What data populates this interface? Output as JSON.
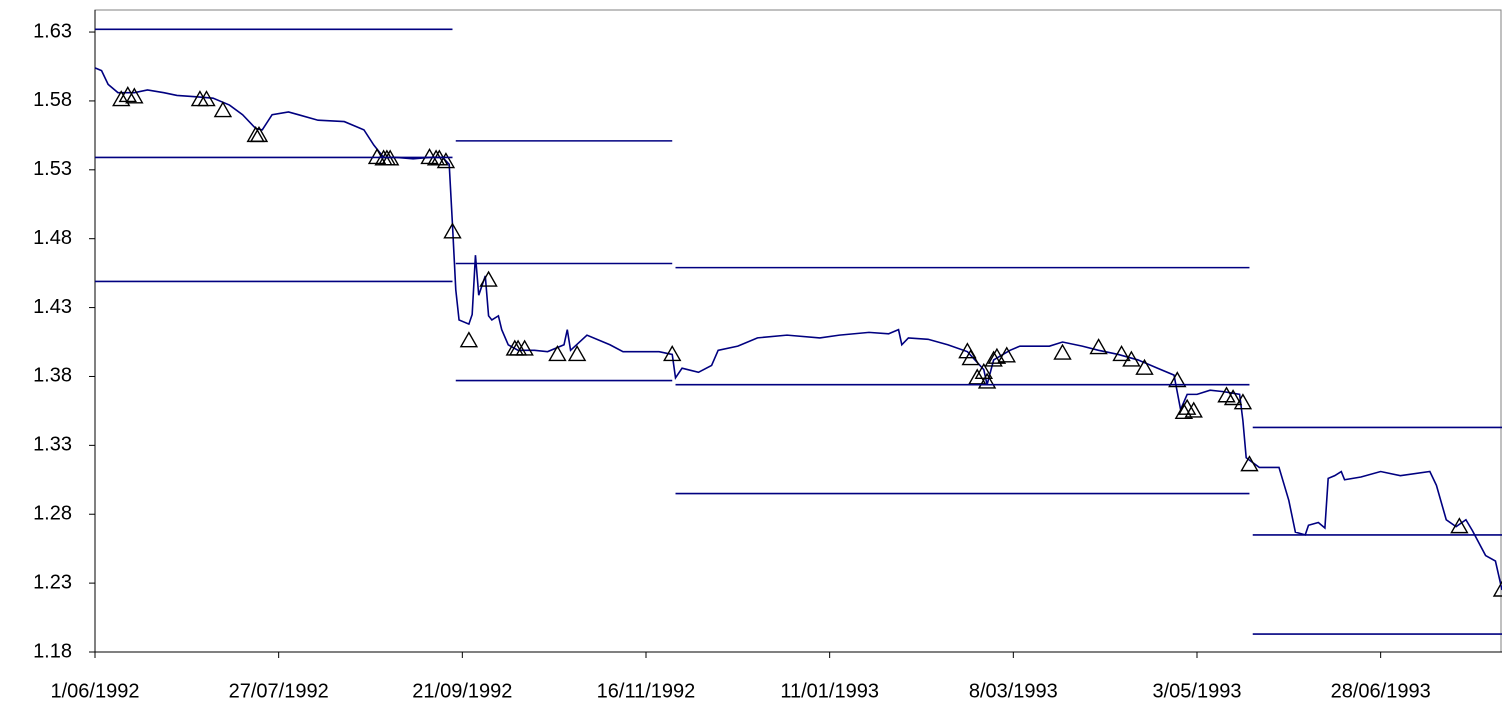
{
  "chart_data": {
    "type": "line",
    "xlim": [
      "1992-06-01",
      "1993-08-04"
    ],
    "xticks": [
      {
        "value": "1992-06-01",
        "label": "1/06/1992"
      },
      {
        "value": "1992-07-27",
        "label": "27/07/1992"
      },
      {
        "value": "1992-09-21",
        "label": "21/09/1992"
      },
      {
        "value": "1992-11-16",
        "label": "16/11/1992"
      },
      {
        "value": "1993-01-11",
        "label": "11/01/1993"
      },
      {
        "value": "1993-03-08",
        "label": "8/03/1993"
      },
      {
        "value": "1993-05-03",
        "label": "3/05/1993"
      },
      {
        "value": "1993-06-28",
        "label": "28/06/1993"
      }
    ],
    "ylim": [
      1.18,
      1.646
    ],
    "yticks": [
      1.18,
      1.23,
      1.28,
      1.33,
      1.38,
      1.43,
      1.48,
      1.53,
      1.58,
      1.63
    ],
    "grid": false,
    "series": [
      {
        "color": "#000080",
        "line": true,
        "marker": "none",
        "x": [
          "1992-06-01",
          "1992-06-03",
          "1992-06-05",
          "1992-06-08",
          "1992-06-13",
          "1992-06-17",
          "1992-06-22",
          "1992-06-26",
          "1992-07-02",
          "1992-07-07",
          "1992-07-12",
          "1992-07-16",
          "1992-07-20",
          "1992-07-22",
          "1992-07-25",
          "1992-07-30",
          "1992-08-02",
          "1992-08-08",
          "1992-08-16",
          "1992-08-22",
          "1992-08-25",
          "1992-08-28",
          "1992-09-01",
          "1992-09-06",
          "1992-09-11",
          "1992-09-15",
          "1992-09-17",
          "1992-09-18",
          "1992-09-19",
          "1992-09-20",
          "1992-09-23",
          "1992-09-24",
          "1992-09-25",
          "1992-09-26",
          "1992-09-28",
          "1992-09-29",
          "1992-09-30",
          "1992-10-02",
          "1992-10-03",
          "1992-10-05",
          "1992-10-08",
          "1992-10-13",
          "1992-10-17",
          "1992-10-22",
          "1992-10-23",
          "1992-10-24",
          "1992-10-29",
          "1992-11-05",
          "1992-11-09",
          "1992-11-14",
          "1992-11-20",
          "1992-11-24",
          "1992-11-25",
          "1992-11-27",
          "1992-12-02",
          "1992-12-06",
          "1992-12-08",
          "1992-12-14",
          "1992-12-20",
          "1992-12-29",
          "1993-01-08",
          "1993-01-14",
          "1993-01-23",
          "1993-01-29",
          "1993-02-01",
          "1993-02-02",
          "1993-02-04",
          "1993-02-10",
          "1993-02-16",
          "1993-02-22",
          "1993-02-27",
          "1993-02-28",
          "1993-03-02",
          "1993-03-07",
          "1993-03-10",
          "1993-03-19",
          "1993-03-23",
          "1993-03-29",
          "1993-04-03",
          "1993-04-09",
          "1993-04-15",
          "1993-04-21",
          "1993-04-26",
          "1993-04-28",
          "1993-04-30",
          "1993-05-03",
          "1993-05-07",
          "1993-05-11",
          "1993-05-16",
          "1993-05-17",
          "1993-05-18",
          "1993-05-22",
          "1993-05-28",
          "1993-05-31",
          "1993-06-02",
          "1993-06-05",
          "1993-06-06",
          "1993-06-09",
          "1993-06-11",
          "1993-06-12",
          "1993-06-14",
          "1993-06-16",
          "1993-06-17",
          "1993-06-22",
          "1993-06-28",
          "1993-07-04",
          "1993-07-13",
          "1993-07-15",
          "1993-07-18",
          "1993-07-21",
          "1993-07-24",
          "1993-07-26",
          "1993-07-30",
          "1993-08-02",
          "1993-08-04"
        ],
        "values": [
          1.604,
          1.602,
          1.592,
          1.586,
          1.586,
          1.588,
          1.586,
          1.584,
          1.583,
          1.582,
          1.577,
          1.57,
          1.56,
          1.559,
          1.57,
          1.572,
          1.57,
          1.566,
          1.565,
          1.559,
          1.548,
          1.539,
          1.539,
          1.538,
          1.539,
          1.539,
          1.534,
          1.49,
          1.443,
          1.421,
          1.418,
          1.425,
          1.468,
          1.439,
          1.453,
          1.424,
          1.421,
          1.424,
          1.414,
          1.403,
          1.399,
          1.399,
          1.398,
          1.403,
          1.414,
          1.399,
          1.41,
          1.403,
          1.398,
          1.398,
          1.398,
          1.396,
          1.379,
          1.386,
          1.383,
          1.388,
          1.399,
          1.402,
          1.408,
          1.41,
          1.408,
          1.41,
          1.412,
          1.411,
          1.414,
          1.403,
          1.408,
          1.407,
          1.403,
          1.398,
          1.385,
          1.374,
          1.392,
          1.399,
          1.402,
          1.402,
          1.405,
          1.402,
          1.399,
          1.396,
          1.392,
          1.386,
          1.381,
          1.356,
          1.367,
          1.367,
          1.37,
          1.369,
          1.367,
          1.348,
          1.321,
          1.314,
          1.314,
          1.29,
          1.267,
          1.265,
          1.272,
          1.274,
          1.27,
          1.306,
          1.308,
          1.311,
          1.305,
          1.307,
          1.311,
          1.308,
          1.311,
          1.301,
          1.276,
          1.271,
          1.276,
          1.268,
          1.25,
          1.246,
          1.225
        ]
      },
      {
        "color": "#000000",
        "line": false,
        "marker": "triangle",
        "x": [
          "1992-06-09",
          "1992-06-11",
          "1992-06-13",
          "1992-07-03",
          "1992-07-05",
          "1992-07-10",
          "1992-07-20",
          "1992-07-21",
          "1992-08-26",
          "1992-08-28",
          "1992-08-29",
          "1992-08-30",
          "1992-09-11",
          "1992-09-13",
          "1992-09-14",
          "1992-09-16",
          "1992-09-18",
          "1992-09-23",
          "1992-09-29",
          "1992-10-07",
          "1992-10-08",
          "1992-10-10",
          "1992-10-20",
          "1992-10-26",
          "1992-11-24",
          "1993-02-22",
          "1993-02-23",
          "1993-02-25",
          "1993-02-27",
          "1993-02-28",
          "1993-03-02",
          "1993-03-03",
          "1993-03-06",
          "1993-03-23",
          "1993-04-03",
          "1993-04-10",
          "1993-04-13",
          "1993-04-17",
          "1993-04-27",
          "1993-04-29",
          "1993-04-30",
          "1993-05-02",
          "1993-05-12",
          "1993-05-14",
          "1993-05-17",
          "1993-05-19",
          "1993-07-22",
          "1993-08-04"
        ],
        "values": [
          1.581,
          1.584,
          1.583,
          1.581,
          1.581,
          1.573,
          1.555,
          1.555,
          1.539,
          1.538,
          1.538,
          1.538,
          1.539,
          1.538,
          1.538,
          1.536,
          1.485,
          1.406,
          1.45,
          1.4,
          1.4,
          1.4,
          1.396,
          1.396,
          1.396,
          1.398,
          1.393,
          1.379,
          1.383,
          1.376,
          1.392,
          1.394,
          1.395,
          1.397,
          1.401,
          1.396,
          1.392,
          1.386,
          1.377,
          1.354,
          1.357,
          1.355,
          1.366,
          1.364,
          1.361,
          1.316,
          1.271,
          1.225
        ]
      },
      {
        "color": "#000080",
        "line": true,
        "marker": "none",
        "x": [
          "1992-06-01",
          "1992-09-18"
        ],
        "values": [
          1.632,
          1.632
        ]
      },
      {
        "color": "#000080",
        "line": true,
        "marker": "none",
        "x": [
          "1992-06-01",
          "1992-09-18"
        ],
        "values": [
          1.539,
          1.539
        ]
      },
      {
        "color": "#000080",
        "line": true,
        "marker": "none",
        "x": [
          "1992-06-01",
          "1992-09-18"
        ],
        "values": [
          1.449,
          1.449
        ]
      },
      {
        "color": "#000080",
        "line": true,
        "marker": "none",
        "x": [
          "1992-09-19",
          "1992-11-24"
        ],
        "values": [
          1.551,
          1.551
        ]
      },
      {
        "color": "#000080",
        "line": true,
        "marker": "none",
        "x": [
          "1992-09-19",
          "1992-11-24"
        ],
        "values": [
          1.462,
          1.462
        ]
      },
      {
        "color": "#000080",
        "line": true,
        "marker": "none",
        "x": [
          "1992-09-19",
          "1992-11-24"
        ],
        "values": [
          1.377,
          1.377
        ]
      },
      {
        "color": "#000080",
        "line": true,
        "marker": "none",
        "x": [
          "1992-11-25",
          "1993-05-19"
        ],
        "values": [
          1.459,
          1.459
        ]
      },
      {
        "color": "#000080",
        "line": true,
        "marker": "none",
        "x": [
          "1992-11-25",
          "1993-05-19"
        ],
        "values": [
          1.374,
          1.374
        ]
      },
      {
        "color": "#000080",
        "line": true,
        "marker": "none",
        "x": [
          "1992-11-25",
          "1993-05-19"
        ],
        "values": [
          1.295,
          1.295
        ]
      },
      {
        "color": "#000080",
        "line": true,
        "marker": "none",
        "x": [
          "1993-05-20",
          "1993-08-04"
        ],
        "values": [
          1.343,
          1.343
        ]
      },
      {
        "color": "#000080",
        "line": true,
        "marker": "none",
        "x": [
          "1993-05-20",
          "1993-08-04"
        ],
        "values": [
          1.265,
          1.265
        ]
      },
      {
        "color": "#000080",
        "line": true,
        "marker": "none",
        "x": [
          "1993-05-20",
          "1993-08-04"
        ],
        "values": [
          1.193,
          1.193
        ]
      }
    ]
  }
}
